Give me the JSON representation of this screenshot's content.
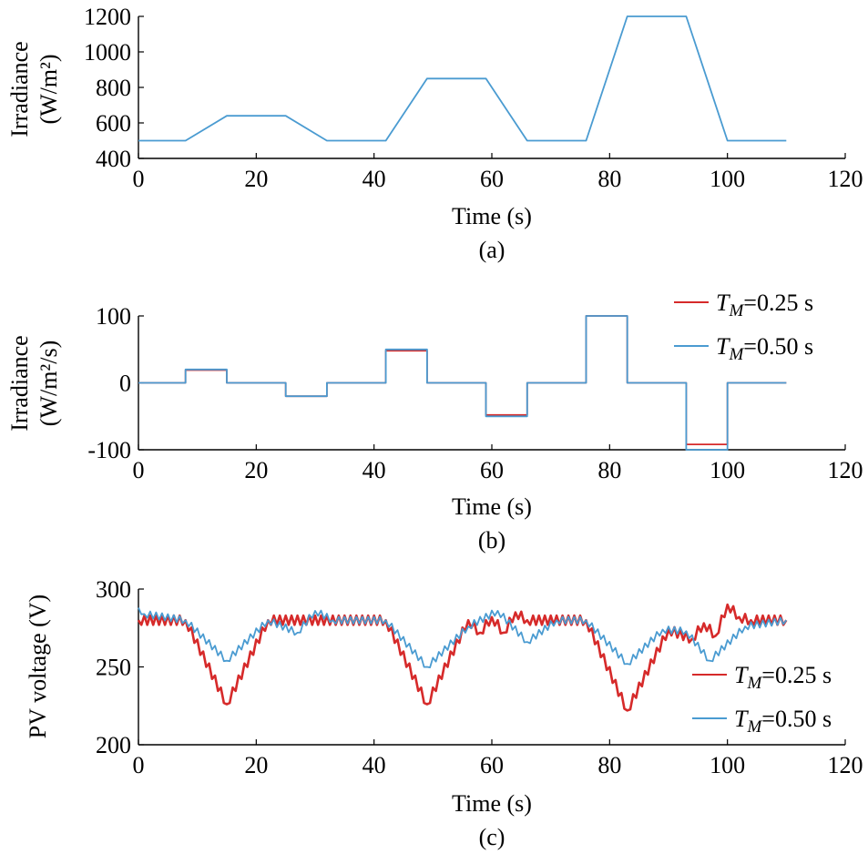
{
  "chart_data": [
    {
      "type": "line",
      "panel_label": "(a)",
      "ylabel_line1": "Irradiance",
      "ylabel_line2": "(W/m²)",
      "xlabel": "Time (s)",
      "xlim": [
        0,
        120
      ],
      "ylim": [
        400,
        1200
      ],
      "xticks": [
        "0",
        "20",
        "40",
        "60",
        "80",
        "100",
        "120"
      ],
      "yticks": [
        "400",
        "600",
        "800",
        "1000",
        "1200"
      ],
      "series": [
        {
          "color": "#4a9bd1",
          "x": [
            0,
            8,
            15,
            25,
            32,
            42,
            49,
            59,
            66,
            76,
            83,
            93,
            100,
            110
          ],
          "y": [
            500,
            500,
            640,
            640,
            500,
            500,
            850,
            850,
            500,
            500,
            1200,
            1200,
            500,
            500
          ]
        }
      ]
    },
    {
      "type": "line",
      "panel_label": "(b)",
      "ylabel_line1": "Irradiance",
      "ylabel_line2": "(W/m²/s)",
      "xlabel": "Time (s)",
      "xlim": [
        0,
        120
      ],
      "ylim": [
        -100,
        100
      ],
      "xticks": [
        "0",
        "20",
        "40",
        "60",
        "80",
        "100",
        "120"
      ],
      "yticks": [
        "-100",
        "0",
        "100"
      ],
      "legend": [
        "=0.25 s",
        "=0.50 s"
      ],
      "legend_symbol": "T",
      "legend_subscript": "M",
      "series": [
        {
          "color": "#d62a2a",
          "x": [
            0,
            8,
            8,
            15,
            15,
            25,
            25,
            32,
            32,
            42,
            42,
            49,
            49,
            59,
            59,
            66,
            66,
            76,
            76,
            83,
            83,
            93,
            93,
            100,
            100,
            110
          ],
          "y": [
            0,
            0,
            19,
            19,
            0,
            0,
            -20,
            -20,
            0,
            0,
            48,
            48,
            0,
            0,
            -48,
            -48,
            0,
            0,
            100,
            100,
            0,
            0,
            -92,
            -92,
            0,
            0
          ]
        },
        {
          "color": "#4a9bd1",
          "x": [
            0,
            8,
            8,
            15,
            15,
            25,
            25,
            32,
            32,
            42,
            42,
            49,
            49,
            59,
            59,
            66,
            66,
            76,
            76,
            83,
            83,
            93,
            93,
            100,
            100,
            110
          ],
          "y": [
            0,
            0,
            20,
            20,
            0,
            0,
            -20,
            -20,
            0,
            0,
            50,
            50,
            0,
            0,
            -50,
            -50,
            0,
            0,
            100,
            100,
            0,
            0,
            -100,
            -100,
            0,
            0
          ]
        }
      ]
    },
    {
      "type": "line",
      "panel_label": "(c)",
      "ylabel": "PV voltage (V)",
      "xlabel": "Time (s)",
      "xlim": [
        0,
        120
      ],
      "ylim": [
        200,
        300
      ],
      "xticks": [
        "0",
        "20",
        "40",
        "60",
        "80",
        "100",
        "120"
      ],
      "yticks": [
        "200",
        "250",
        "300"
      ],
      "legend": [
        "=0.25 s",
        "=0.50 s"
      ],
      "legend_symbol": "T",
      "legend_subscript": "M",
      "series": [
        {
          "color": "#d62a2a",
          "x": [
            0,
            8,
            15,
            22,
            42,
            49,
            56,
            58,
            60,
            62,
            64,
            66,
            76,
            83,
            90,
            94,
            96,
            98,
            100,
            102,
            104,
            110
          ],
          "y": [
            280,
            280,
            226,
            280,
            280,
            226,
            280,
            272,
            282,
            272,
            285,
            280,
            280,
            222,
            274,
            268,
            278,
            270,
            290,
            282,
            280,
            280
          ]
        },
        {
          "color": "#4a9bd1",
          "x": [
            0,
            1,
            8,
            15,
            22,
            27,
            30,
            33,
            42,
            49,
            56,
            61,
            66,
            71,
            76,
            83,
            89,
            93,
            97,
            103,
            110
          ],
          "y": [
            288,
            284,
            280,
            254,
            280,
            272,
            286,
            280,
            280,
            250,
            276,
            286,
            266,
            280,
            280,
            252,
            274,
            273,
            254,
            276,
            280
          ]
        }
      ]
    }
  ]
}
